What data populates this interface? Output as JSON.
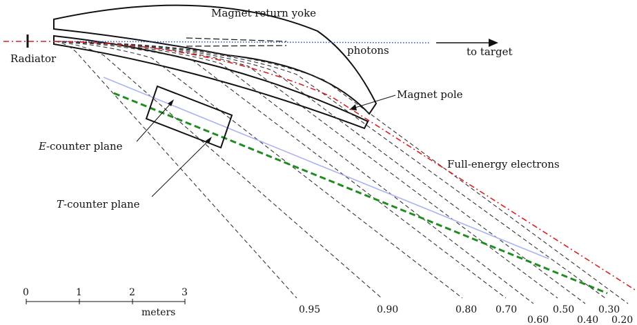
{
  "diagram": {
    "labels": {
      "yoke": "Magnet return yoke",
      "radiator": "Radiator",
      "photons": "photons",
      "to_target": "to target",
      "pole": "Magnet pole",
      "e_plane_letter": "E",
      "e_plane_rest": "-counter plane",
      "t_plane_letter": "T",
      "t_plane_rest": "-counter plane",
      "full_energy": "Full-energy electrons"
    },
    "energy_fractions": [
      "0.95",
      "0.90",
      "0.80",
      "0.70",
      "0.60",
      "0.50",
      "0.40",
      "0.30",
      "0.20"
    ],
    "scale": {
      "ticks": [
        "0",
        "1",
        "2",
        "3"
      ],
      "unit": "meters"
    },
    "colors": {
      "beam": "#d82020",
      "photons": "#3344cc",
      "highlight": "#1e8c1e",
      "light_track": "#aab2f0",
      "line": "#111111"
    }
  }
}
